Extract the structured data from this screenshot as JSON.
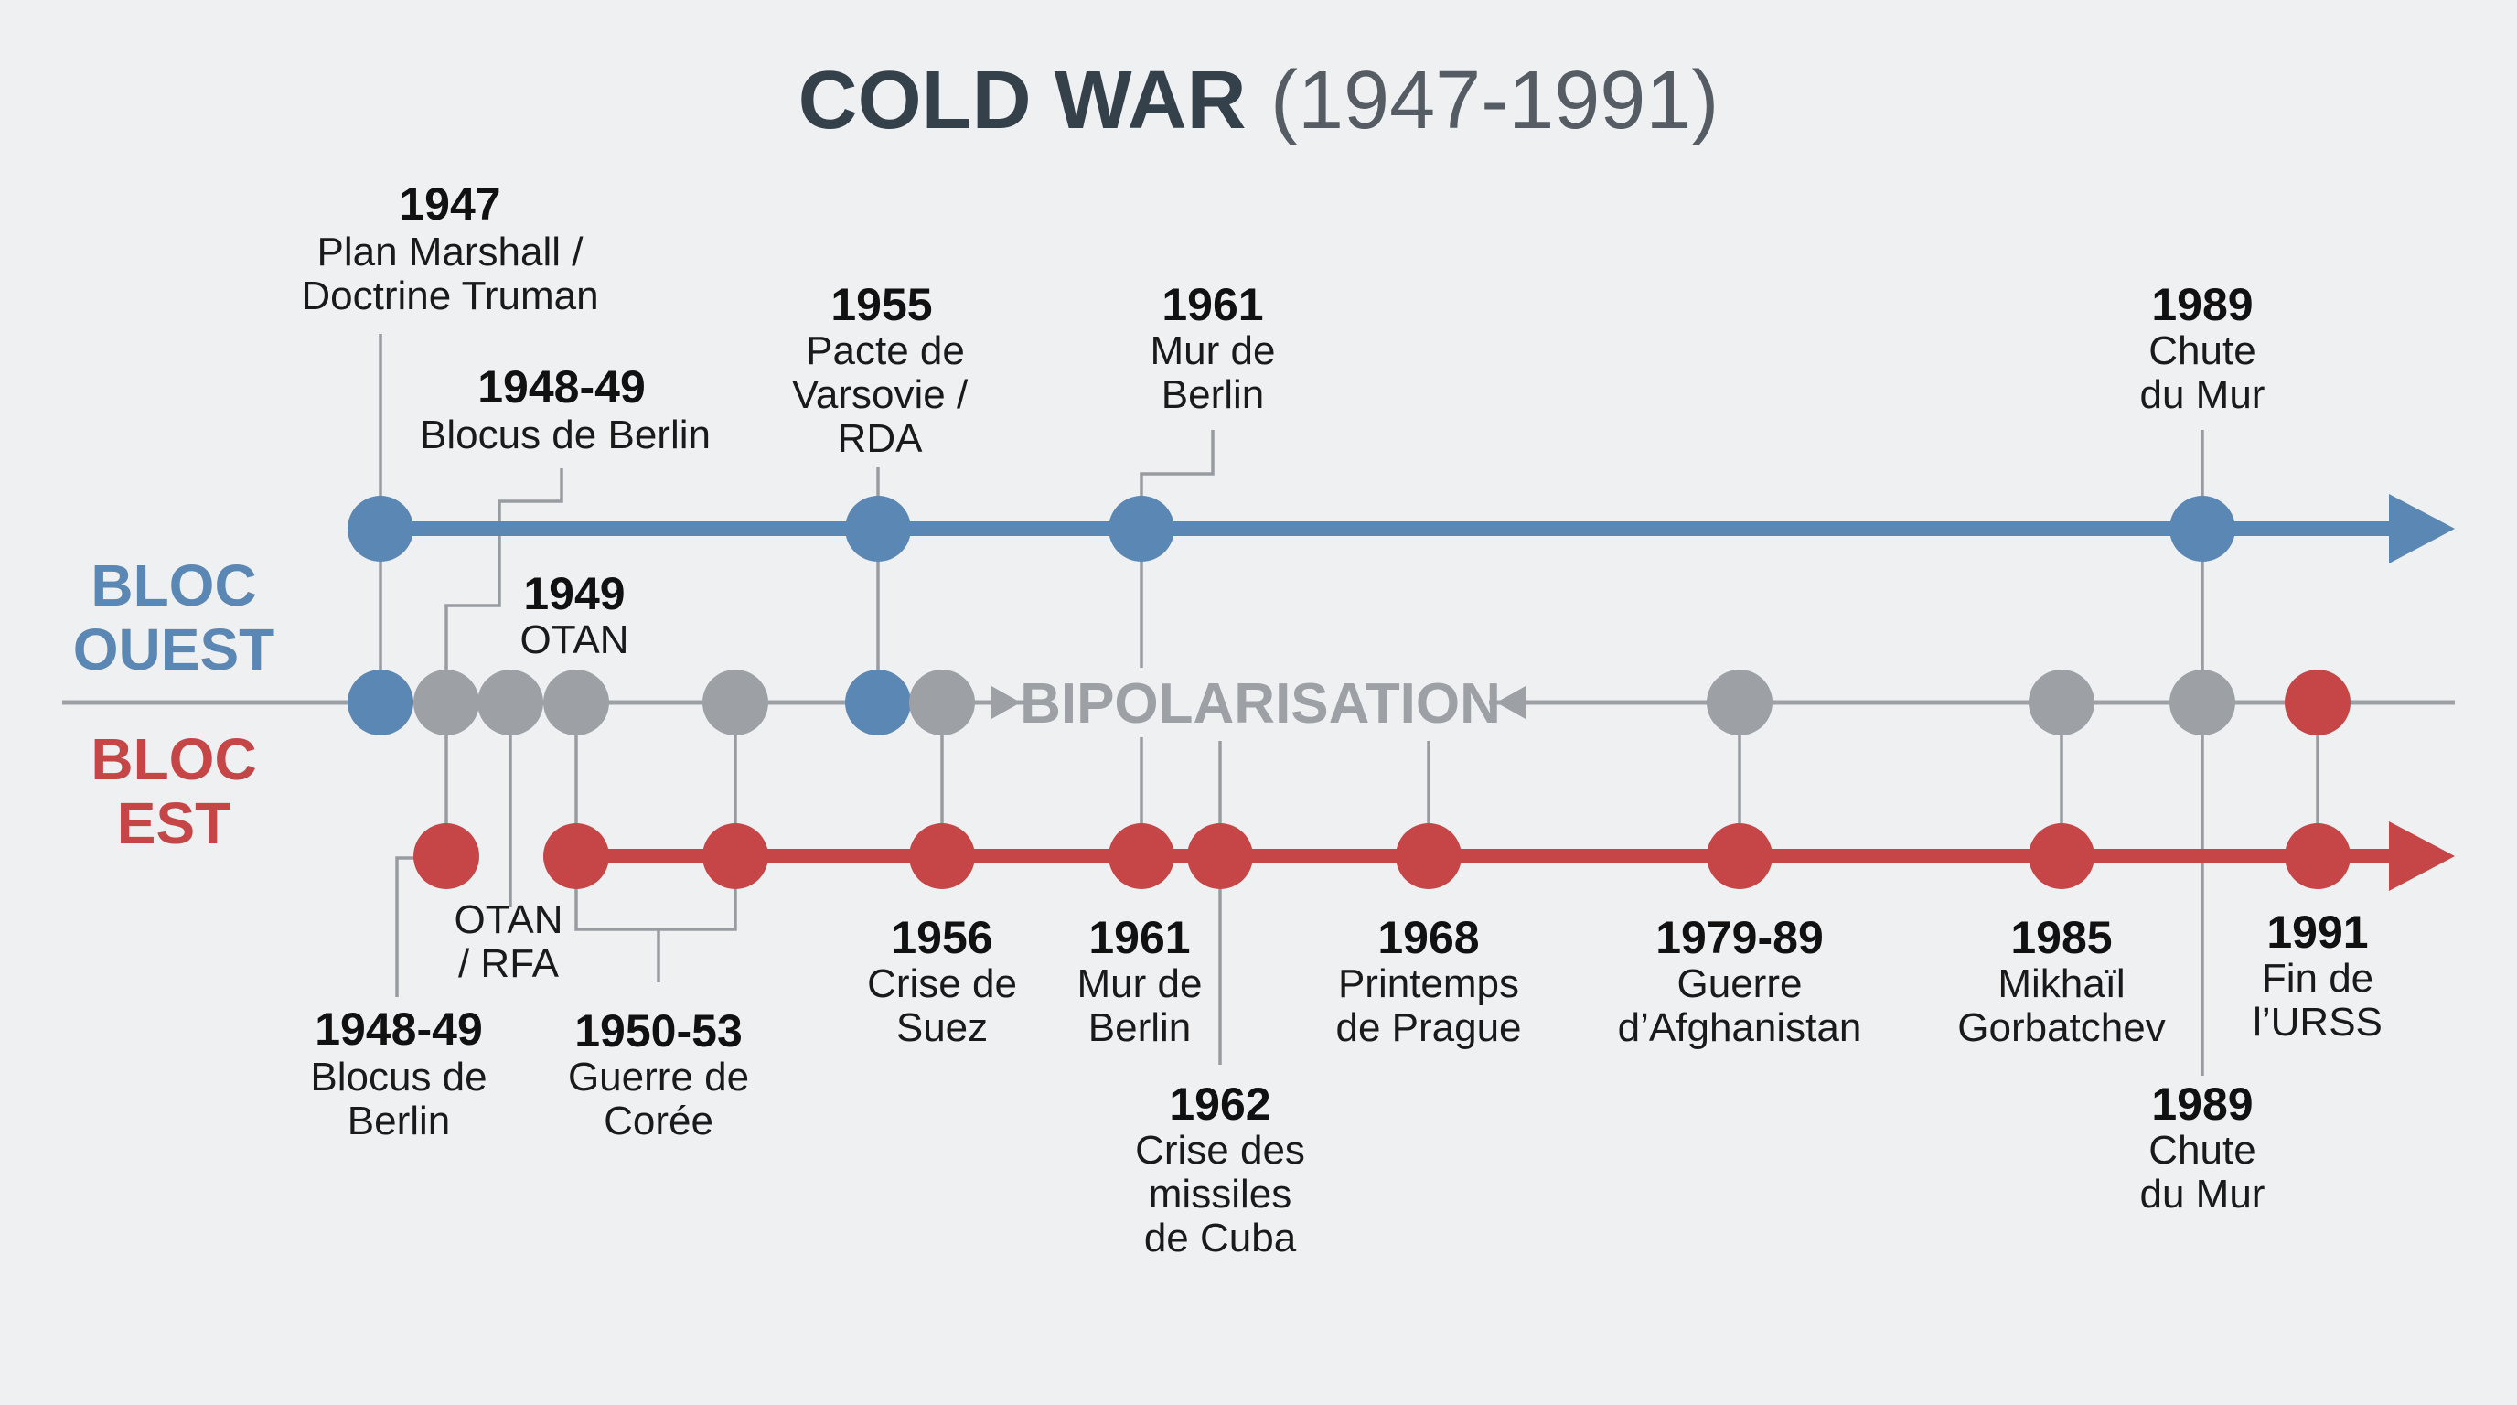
{
  "title": {
    "main": "COLD WAR",
    "range": "(1947-1991)"
  },
  "blocs": {
    "west": [
      "BLOC",
      "OUEST"
    ],
    "east": [
      "BLOC",
      "EST"
    ]
  },
  "center_label": "BIPOLARISATION",
  "colors": {
    "west": "#5b87b4",
    "east": "#c64647",
    "neutral": "#9da1a6",
    "background": "#eef0f2"
  },
  "events_west": [
    {
      "id": "w1947",
      "year": "1947",
      "lines": [
        "Plan Marshall /",
        "Doctrine Truman"
      ]
    },
    {
      "id": "w1948",
      "year": "1948-49",
      "lines": [
        "Blocus de Berlin"
      ]
    },
    {
      "id": "w1949",
      "year": "1949",
      "lines": [
        "OTAN"
      ]
    },
    {
      "id": "w1955",
      "year": "1955",
      "lines": [
        "Pacte de",
        "Varsovie /",
        "RDA"
      ]
    },
    {
      "id": "w1961",
      "year": "1961",
      "lines": [
        "Mur de",
        "Berlin"
      ]
    },
    {
      "id": "w1989",
      "year": "1989",
      "lines": [
        "Chute",
        "du Mur"
      ]
    }
  ],
  "events_east": [
    {
      "id": "e1948",
      "year": "1948-49",
      "lines": [
        "Blocus de",
        "Berlin"
      ]
    },
    {
      "id": "eotan",
      "year": "",
      "lines": [
        "OTAN",
        "/ RFA"
      ]
    },
    {
      "id": "e1950",
      "year": "1950-53",
      "lines": [
        "Guerre de",
        "Corée"
      ]
    },
    {
      "id": "e1956",
      "year": "1956",
      "lines": [
        "Crise de",
        "Suez"
      ]
    },
    {
      "id": "e1961",
      "year": "1961",
      "lines": [
        "Mur de",
        "Berlin"
      ]
    },
    {
      "id": "e1962",
      "year": "1962",
      "lines": [
        "Crise des",
        "missiles",
        "de Cuba"
      ]
    },
    {
      "id": "e1968",
      "year": "1968",
      "lines": [
        "Printemps",
        "de Prague"
      ]
    },
    {
      "id": "e1979",
      "year": "1979-89",
      "lines": [
        "Guerre",
        "d’Afghanistan"
      ]
    },
    {
      "id": "e1985",
      "year": "1985",
      "lines": [
        "Mikhaïl",
        "Gorbatchev"
      ]
    },
    {
      "id": "e1991",
      "year": "1991",
      "lines": [
        "Fin de",
        "l’URSS"
      ]
    },
    {
      "id": "e1989",
      "year": "1989",
      "lines": [
        "Chute",
        "du Mur"
      ]
    }
  ]
}
